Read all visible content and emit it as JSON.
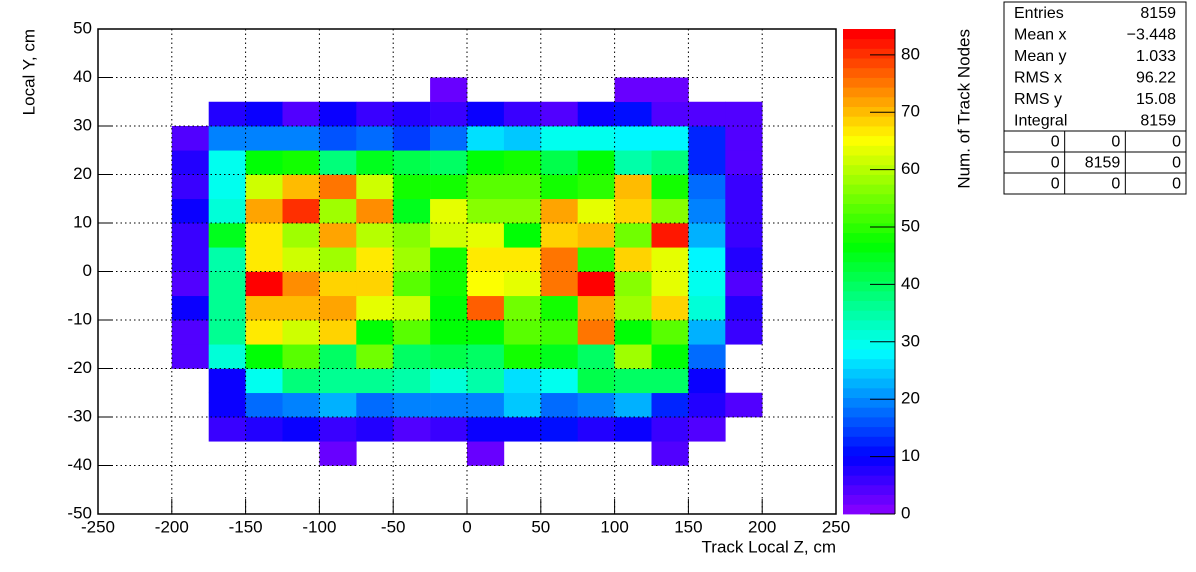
{
  "chart_data": {
    "type": "heatmap",
    "x_label": "Track Local Z, cm",
    "y_label": "Local Y, cm",
    "z_label": "Num. of Track Nodes",
    "xlim": [
      -250,
      250
    ],
    "ylim": [
      -50,
      50
    ],
    "zlim": [
      0,
      84.5
    ],
    "xticks": [
      -250,
      -200,
      -150,
      -100,
      -50,
      0,
      50,
      100,
      150,
      200,
      250
    ],
    "yticks": [
      -50,
      -40,
      -30,
      -20,
      -10,
      0,
      10,
      20,
      30,
      40,
      50
    ],
    "zticks": [
      0,
      10,
      20,
      30,
      40,
      50,
      60,
      70,
      80
    ],
    "grid": true,
    "colormap": "rainbow",
    "x_bins": [
      -200,
      -175,
      -150,
      -125,
      -100,
      -75,
      -50,
      -25,
      0,
      25,
      50,
      75,
      100,
      125,
      150,
      175,
      200
    ],
    "y_bins": [
      -40,
      -35,
      -30,
      -25,
      -20,
      -15,
      -10,
      -5,
      0,
      5,
      10,
      15,
      20,
      25,
      30,
      35,
      40
    ],
    "values": [
      [
        null,
        null,
        null,
        null,
        3,
        null,
        null,
        null,
        3,
        null,
        null,
        null,
        null,
        4,
        null,
        null
      ],
      [
        null,
        6,
        7,
        9,
        6,
        8,
        5,
        6,
        10,
        10,
        11,
        7,
        9,
        6,
        5,
        null
      ],
      [
        null,
        10,
        17,
        20,
        22,
        17,
        19,
        19,
        20,
        25,
        17,
        19,
        23,
        12,
        7,
        5
      ],
      [
        null,
        10,
        30,
        38,
        37,
        37,
        35,
        31,
        35,
        26,
        29,
        42,
        39,
        40,
        10,
        null
      ],
      [
        4,
        31,
        47,
        54,
        39,
        55,
        40,
        41,
        39,
        48,
        45,
        39,
        58,
        46,
        18,
        null
      ],
      [
        5,
        36,
        67,
        61,
        69,
        47,
        53,
        46,
        47,
        53,
        51,
        75,
        46,
        53,
        23,
        6
      ],
      [
        10,
        36,
        70,
        70,
        72,
        63,
        62,
        47,
        77,
        55,
        49,
        71,
        59,
        68,
        31,
        8
      ],
      [
        4,
        37,
        83,
        74,
        68,
        69,
        53,
        48,
        65,
        64,
        76,
        83,
        57,
        63,
        29,
        4
      ],
      [
        6,
        35,
        67,
        62,
        59,
        67,
        59,
        48,
        66,
        66,
        75,
        50,
        68,
        63,
        28,
        7
      ],
      [
        6,
        45,
        66,
        58,
        72,
        60,
        57,
        62,
        63,
        47,
        68,
        70,
        55,
        82,
        23,
        6
      ],
      [
        9,
        31,
        72,
        80,
        58,
        73,
        45,
        63,
        57,
        57,
        71,
        64,
        68,
        57,
        20,
        6
      ],
      [
        6,
        30,
        62,
        70,
        76,
        61,
        49,
        48,
        53,
        54,
        48,
        50,
        70,
        48,
        18,
        6
      ],
      [
        7,
        30,
        46,
        48,
        38,
        44,
        41,
        40,
        46,
        48,
        42,
        47,
        34,
        38,
        13,
        5
      ],
      [
        4,
        20,
        20,
        20,
        16,
        18,
        14,
        18,
        27,
        24,
        30,
        30,
        28,
        28,
        12,
        5
      ],
      [
        null,
        7,
        10,
        5,
        9,
        6,
        8,
        6,
        10,
        6,
        4,
        10,
        11,
        5,
        4,
        4
      ],
      [
        null,
        null,
        null,
        null,
        null,
        null,
        null,
        3,
        null,
        null,
        null,
        null,
        3,
        3,
        null,
        null
      ]
    ]
  },
  "stats": {
    "rows": [
      [
        "Entries",
        "8159"
      ],
      [
        "Mean x",
        "−3.448"
      ],
      [
        "Mean y",
        "1.033"
      ],
      [
        "RMS x",
        "96.22"
      ],
      [
        "RMS y",
        "15.08"
      ],
      [
        "Integral",
        "8159"
      ]
    ],
    "grid": [
      [
        "0",
        "0",
        "0"
      ],
      [
        "0",
        "8159",
        "0"
      ],
      [
        "0",
        "0",
        "0"
      ]
    ]
  }
}
